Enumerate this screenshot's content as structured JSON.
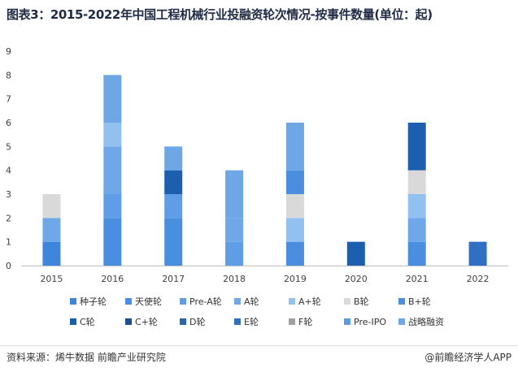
{
  "title": "图表3：2015-2022年中国工程机械行业投融资轮次情况-按事件数量(单位：起)",
  "source": "资料来源：烯牛数据 前瞻产业研究院",
  "credit": "@前瞻经济学人APP",
  "chart_data": {
    "type": "bar",
    "stacked": true,
    "title": "图表3：2015-2022年中国工程机械行业投融资轮次情况-按事件数量(单位：起)",
    "categories": [
      "2015",
      "2016",
      "2017",
      "2018",
      "2019",
      "2020",
      "2021",
      "2022"
    ],
    "ylim": [
      0,
      9
    ],
    "yticks": [
      0,
      1,
      2,
      3,
      4,
      5,
      6,
      7,
      8,
      9
    ],
    "grid": false,
    "legend_position": "bottom",
    "series": [
      {
        "name": "种子轮",
        "color": "#3e86dc",
        "values": [
          1,
          0,
          0,
          0,
          0,
          0,
          0,
          0
        ]
      },
      {
        "name": "天使轮",
        "color": "#4a8ee0",
        "values": [
          0,
          2,
          2,
          0,
          1,
          0,
          1,
          0
        ]
      },
      {
        "name": "Pre-A轮",
        "color": "#5f9de6",
        "values": [
          0,
          1,
          1,
          1,
          0,
          0,
          0,
          0
        ]
      },
      {
        "name": "A轮",
        "color": "#6ea8e8",
        "values": [
          1,
          2,
          0,
          1,
          0,
          0,
          1,
          0
        ]
      },
      {
        "name": "A+轮",
        "color": "#93c1ef",
        "values": [
          0,
          1,
          0,
          0,
          1,
          0,
          1,
          0
        ]
      },
      {
        "name": "B轮",
        "color": "#d9d9d9",
        "values": [
          1,
          0,
          0,
          0,
          1,
          0,
          1,
          0
        ]
      },
      {
        "name": "B+轮",
        "color": "#4a8ee0",
        "values": [
          0,
          0,
          0,
          0,
          1,
          0,
          0,
          0
        ]
      },
      {
        "name": "C轮",
        "color": "#1b5fae",
        "values": [
          0,
          0,
          1,
          0,
          0,
          1,
          2,
          0
        ]
      },
      {
        "name": "C+轮",
        "color": "#1f4e8f",
        "values": [
          0,
          0,
          0,
          0,
          0,
          0,
          0,
          0
        ]
      },
      {
        "name": "D轮",
        "color": "#2a64b0",
        "values": [
          0,
          0,
          0,
          0,
          0,
          0,
          0,
          0
        ]
      },
      {
        "name": "E轮",
        "color": "#2f6fc4",
        "values": [
          0,
          0,
          0,
          0,
          0,
          0,
          0,
          1
        ]
      },
      {
        "name": "F轮",
        "color": "#a0a0a0",
        "values": [
          0,
          0,
          0,
          0,
          0,
          0,
          0,
          0
        ]
      },
      {
        "name": "Pre-IPO",
        "color": "#5b9be4",
        "values": [
          0,
          0,
          0,
          0,
          0,
          0,
          0,
          0
        ]
      },
      {
        "name": "战略融资",
        "color": "#6fa7e6",
        "values": [
          0,
          2,
          1,
          2,
          2,
          0,
          0,
          0
        ]
      }
    ]
  }
}
